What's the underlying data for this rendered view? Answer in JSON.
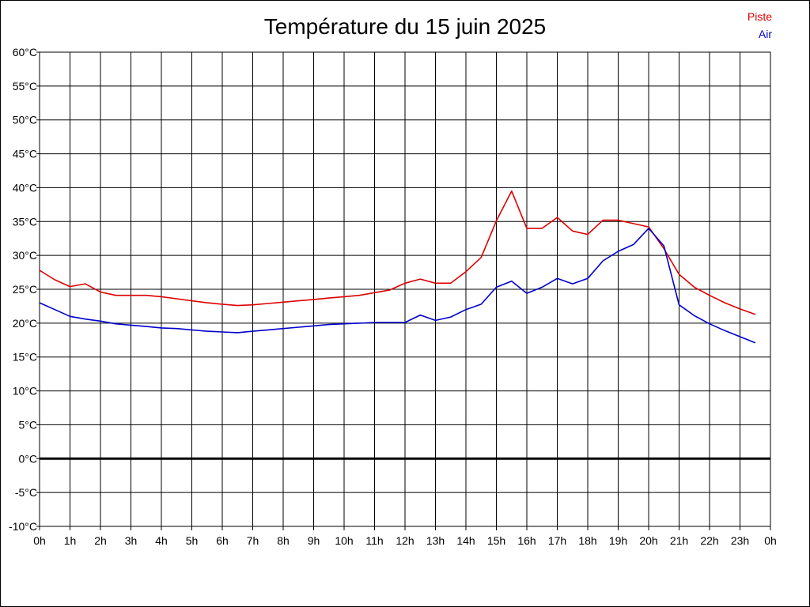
{
  "chart_data": {
    "type": "line",
    "title": "Température du 15 juin 2025",
    "ylim": [
      -10,
      60
    ],
    "xlim": [
      0,
      24
    ],
    "grid": true,
    "legend_placement": "top-right",
    "y_ticks": [
      -10,
      -5,
      0,
      5,
      10,
      15,
      20,
      25,
      30,
      35,
      40,
      45,
      50,
      55,
      60
    ],
    "y_tick_labels": [
      "-10°C",
      "-5°C",
      "0°C",
      "5°C",
      "10°C",
      "15°C",
      "20°C",
      "25°C",
      "30°C",
      "35°C",
      "40°C",
      "45°C",
      "50°C",
      "55°C",
      "60°C"
    ],
    "x_ticks": [
      0,
      1,
      2,
      3,
      4,
      5,
      6,
      7,
      8,
      9,
      10,
      11,
      12,
      13,
      14,
      15,
      16,
      17,
      18,
      19,
      20,
      21,
      22,
      23,
      24
    ],
    "x_tick_labels": [
      "0h",
      "1h",
      "2h",
      "3h",
      "4h",
      "5h",
      "6h",
      "7h",
      "8h",
      "9h",
      "10h",
      "11h",
      "12h",
      "13h",
      "14h",
      "15h",
      "16h",
      "17h",
      "18h",
      "19h",
      "20h",
      "21h",
      "22h",
      "23h",
      "0h"
    ],
    "series": [
      {
        "name": "Piste",
        "color": "#dd0000",
        "x": [
          0,
          0.5,
          1,
          1.5,
          2,
          2.5,
          3,
          3.5,
          4,
          4.5,
          5,
          5.5,
          6,
          6.5,
          7,
          7.5,
          8,
          8.5,
          9,
          9.5,
          10,
          10.5,
          11,
          11.5,
          12,
          12.5,
          13,
          13.5,
          14,
          14.5,
          15,
          15.5,
          16,
          16.5,
          17,
          17.5,
          18,
          18.5,
          19,
          19.5,
          20,
          20.5,
          21,
          21.5,
          22,
          22.5,
          23,
          23.5
        ],
        "values": [
          27.8,
          26.4,
          25.4,
          25.8,
          24.6,
          24.1,
          24.1,
          24.1,
          23.9,
          23.6,
          23.3,
          23.0,
          22.8,
          22.6,
          22.7,
          22.9,
          23.1,
          23.3,
          23.5,
          23.7,
          23.9,
          24.1,
          24.5,
          24.9,
          25.9,
          26.5,
          25.9,
          25.9,
          27.6,
          29.7,
          35.1,
          39.5,
          34.0,
          34.0,
          35.6,
          33.6,
          33.1,
          35.2,
          35.2,
          34.7,
          34.2,
          31.0,
          27.2,
          25.3,
          24.1,
          23.0,
          22.1,
          21.3
        ]
      },
      {
        "name": "Air",
        "color": "#0000cc",
        "x": [
          0,
          0.5,
          1,
          1.5,
          2,
          2.5,
          3,
          3.5,
          4,
          4.5,
          5,
          5.5,
          6,
          6.5,
          7,
          7.5,
          8,
          8.5,
          9,
          9.5,
          10,
          10.5,
          11,
          11.5,
          12,
          12.5,
          13,
          13.5,
          14,
          14.5,
          15,
          15.5,
          16,
          16.5,
          17,
          17.5,
          18,
          18.5,
          19,
          19.5,
          20,
          20.5,
          21,
          21.5,
          22,
          22.5,
          23,
          23.5
        ],
        "values": [
          23.0,
          22.0,
          21.0,
          20.6,
          20.3,
          19.9,
          19.7,
          19.5,
          19.3,
          19.2,
          19.0,
          18.8,
          18.7,
          18.6,
          18.8,
          19.0,
          19.2,
          19.4,
          19.6,
          19.8,
          19.9,
          20.0,
          20.1,
          20.1,
          20.1,
          21.2,
          20.4,
          20.9,
          22.0,
          22.8,
          25.3,
          26.2,
          24.4,
          25.3,
          26.6,
          25.8,
          26.6,
          29.2,
          30.6,
          31.6,
          34.0,
          31.4,
          22.7,
          21.1,
          19.9,
          18.9,
          18.0,
          17.1
        ]
      }
    ]
  }
}
